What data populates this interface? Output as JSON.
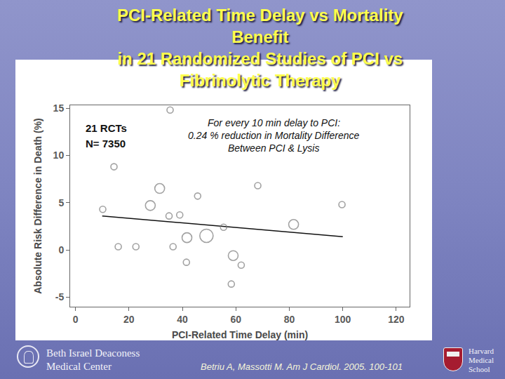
{
  "chart_data": {
    "type": "scatter",
    "title": [
      "PCI-Related Time Delay vs Mortality",
      "Benefit",
      "in 21 Randomized Studies of PCI vs",
      "Fibrinolytic Therapy"
    ],
    "x_label": "PCI-Related Time Delay (min)",
    "y_label": "Absolute Risk Difference in Death (%)",
    "x": [
      10.2,
      14.4,
      16,
      22.6,
      28,
      31.5,
      35.4,
      35,
      39,
      36.5,
      45.7,
      41.7,
      49,
      41.5,
      55.4,
      59,
      62,
      58.3,
      68.2,
      81.6,
      99.7
    ],
    "values": [
      4.3,
      8.8,
      0.35,
      0.35,
      4.7,
      6.5,
      14.8,
      3.6,
      3.7,
      0.35,
      5.7,
      1.3,
      1.5,
      -1.3,
      2.4,
      -0.6,
      -1.6,
      -3.6,
      6.8,
      2.7,
      4.8
    ],
    "sizes": [
      1,
      1,
      1,
      1,
      2,
      2,
      1,
      1,
      1,
      1,
      1,
      2,
      3,
      1,
      1,
      2,
      1,
      1,
      1,
      2,
      1
    ],
    "color": "#7a7a7a",
    "marker": "circle-open",
    "trend_line": {
      "x": [
        10,
        100
      ],
      "values": [
        3.6,
        1.4
      ],
      "color": "#111111"
    },
    "xlim": [
      -2,
      125
    ],
    "ylim": [
      -6,
      15.3
    ],
    "xticks": [
      0,
      20,
      40,
      60,
      80,
      100,
      120
    ],
    "yticks": [
      -5,
      0,
      5,
      10,
      15
    ],
    "grid": false,
    "annotations": {
      "study_count": [
        "21 RCTs",
        "N= 7350"
      ],
      "finding": [
        "For every 10 min delay to PCI:",
        "0.24 % reduction in Mortality Difference",
        "Between PCI & Lysis"
      ]
    },
    "footer": {
      "left": [
        "Beth Israel Deaconess",
        "Medical Center"
      ],
      "citation": "Betriu A, Massotti M. Am J Cardiol. 2005. 100-101",
      "right": [
        "Harvard",
        "Medical",
        "School"
      ]
    }
  }
}
